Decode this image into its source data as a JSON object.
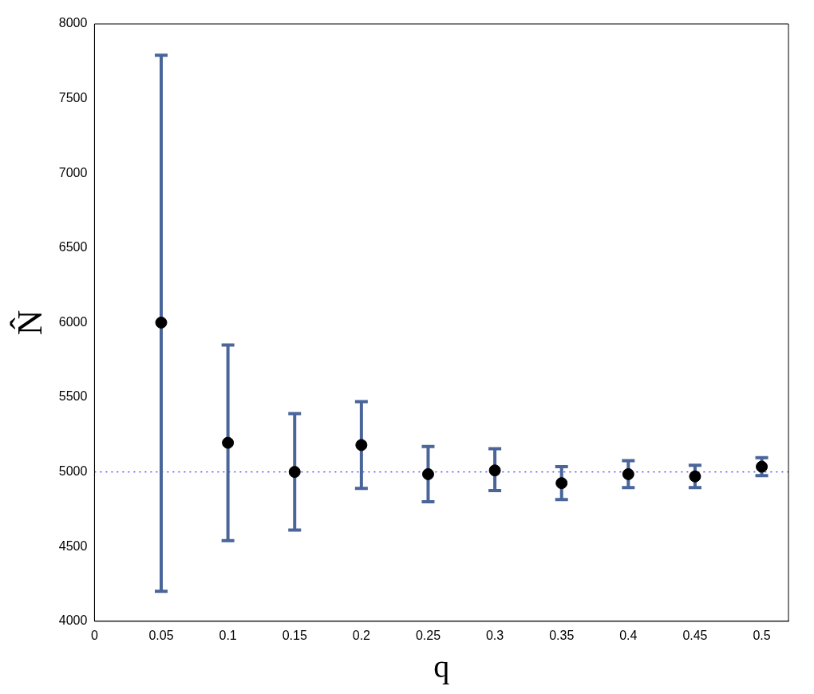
{
  "chart_data": {
    "type": "scatter",
    "xlabel": "q",
    "ylabel": "N̂",
    "x": [
      0.05,
      0.1,
      0.15,
      0.2,
      0.25,
      0.3,
      0.35,
      0.4,
      0.45,
      0.5
    ],
    "series": [
      {
        "color": "#000000",
        "values": [
          6000,
          5195,
          5000,
          5180,
          4985,
          5010,
          4925,
          4985,
          4970,
          5035
        ],
        "errors": [
          [
            4200,
            7790
          ],
          [
            4540,
            5850
          ],
          [
            4610,
            5390
          ],
          [
            4890,
            5470
          ],
          [
            4800,
            5170
          ],
          [
            4875,
            5155
          ],
          [
            4815,
            5035
          ],
          [
            4895,
            5075
          ],
          [
            4895,
            5045
          ],
          [
            4975,
            5095
          ]
        ]
      }
    ],
    "xlim": [
      0,
      0.52
    ],
    "xticks": [
      0,
      0.05,
      0.1,
      0.15,
      0.2,
      0.25,
      0.3,
      0.35,
      0.4,
      0.45,
      0.5
    ],
    "ylim": [
      4000,
      8000
    ],
    "yticks": [
      4000,
      4500,
      5000,
      5500,
      6000,
      6500,
      7000,
      7500,
      8000
    ],
    "ref_lines": [
      {
        "axis": "y",
        "value": 5000,
        "color": "#3333ff",
        "line_style": "dotted"
      }
    ],
    "marker": "circle",
    "grid": false,
    "legend": false
  }
}
